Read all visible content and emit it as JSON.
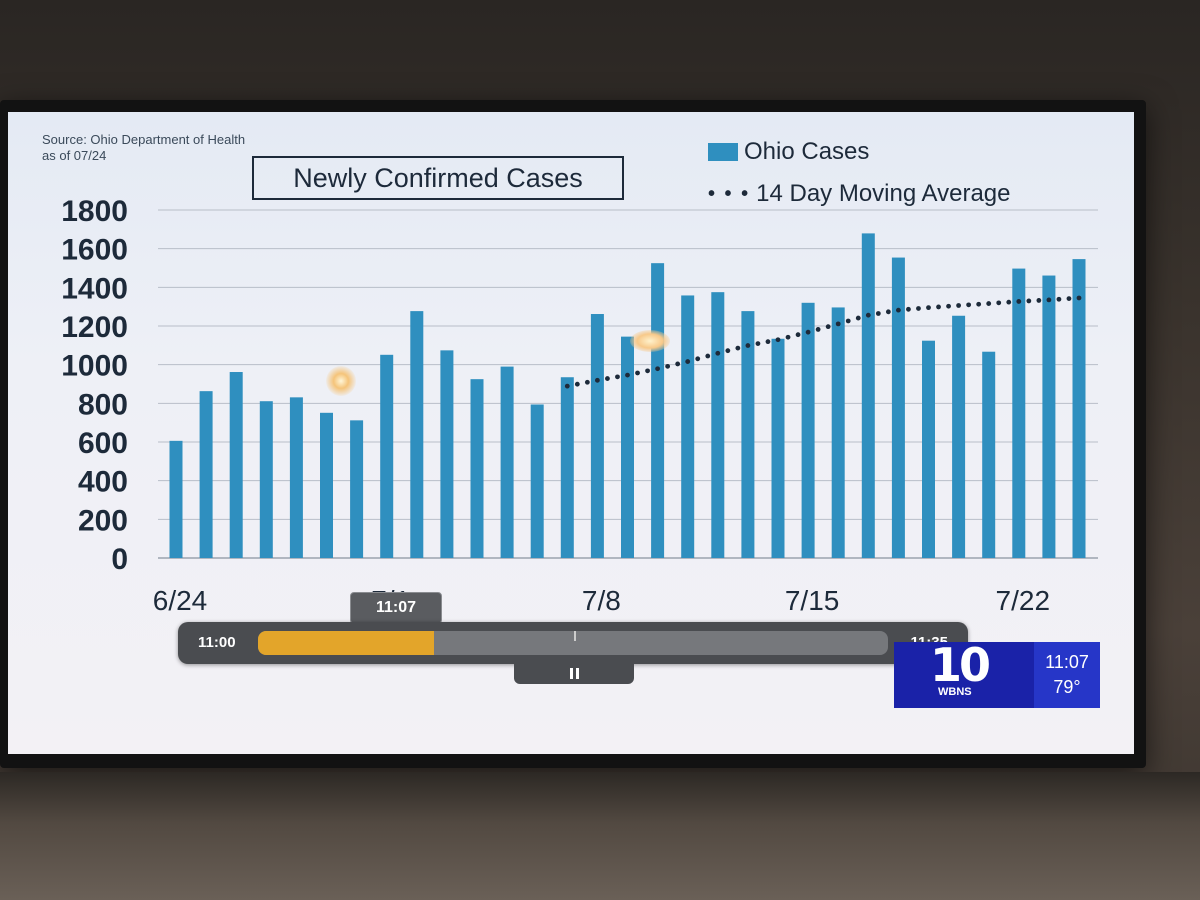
{
  "source": {
    "line1": "Source: Ohio Department of Health",
    "line2": "as of 07/24"
  },
  "legend": {
    "cases": "Ohio Cases",
    "average": "14 Day Moving Average",
    "dots": "• • •"
  },
  "playback": {
    "start": "11:00",
    "end": "11:35",
    "current": "11:07",
    "progress_fraction": 0.28
  },
  "station": {
    "logo_number": "10",
    "logo_letters": "WBNS",
    "time": "11:07",
    "temperature": "79°",
    "color": "#1a22a8"
  },
  "chart_data": {
    "type": "bar",
    "title": "Newly Confirmed Cases",
    "xlabel": "",
    "ylabel": "",
    "ylim": [
      0,
      1800
    ],
    "yticks": [
      0,
      200,
      400,
      600,
      800,
      1000,
      1200,
      1400,
      1600,
      1800
    ],
    "categories": [
      "6/24",
      "6/25",
      "6/26",
      "6/27",
      "6/28",
      "6/29",
      "6/30",
      "7/1",
      "7/2",
      "7/3",
      "7/4",
      "7/5",
      "7/6",
      "7/7",
      "7/8",
      "7/9",
      "7/10",
      "7/11",
      "7/12",
      "7/13",
      "7/14",
      "7/15",
      "7/16",
      "7/17",
      "7/18",
      "7/19",
      "7/20",
      "7/21",
      "7/22",
      "7/23",
      "7/24"
    ],
    "x_tick_labels": [
      "6/24",
      "7/1",
      "7/8",
      "7/15",
      "7/22"
    ],
    "grid": true,
    "bar_color": "#2f8fbf",
    "series": [
      {
        "name": "Ohio Cases",
        "values": [
          606,
          863,
          962,
          811,
          831,
          751,
          712,
          1051,
          1277,
          1074,
          925,
          990,
          794,
          935,
          1262,
          1145,
          1525,
          1358,
          1375,
          1277,
          1134,
          1320,
          1296,
          1679,
          1554,
          1124,
          1253,
          1067,
          1497,
          1461,
          1546
        ]
      },
      {
        "name": "14 Day Moving Average",
        "style": "dotted",
        "values": [
          null,
          null,
          null,
          null,
          null,
          null,
          null,
          null,
          null,
          null,
          null,
          null,
          null,
          889,
          919,
          946,
          979,
          1016,
          1059,
          1099,
          1129,
          1168,
          1211,
          1256,
          1282,
          1295,
          1306,
          1316,
          1327,
          1335,
          1345
        ]
      }
    ]
  }
}
